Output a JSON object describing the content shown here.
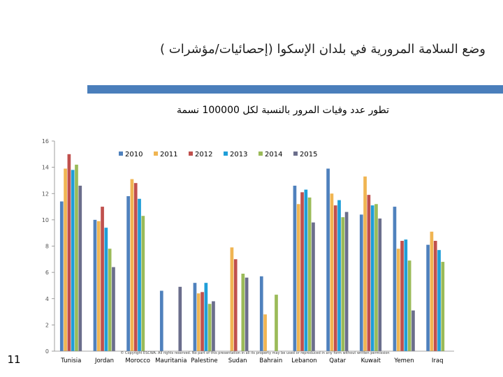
{
  "slide": {
    "title": "وضع السلامة المرورية في بلدان الإسكوا (إحصائيات/مؤشرات )",
    "page_number": "11",
    "copyright": "© Copyright ESCWA. All rights reserved. No part of this presentation in all its property may be used or reproduced in any form without written permission",
    "accent_color": "#4a7ebb"
  },
  "chart_data": {
    "type": "bar",
    "title": "تطور عدد وفيات المرور بالنسبة لكل 100000 نسمة",
    "xlabel": "",
    "ylabel": "",
    "ylim": [
      0,
      16
    ],
    "yticks": [
      0,
      2,
      4,
      6,
      8,
      10,
      12,
      14,
      16
    ],
    "grid": false,
    "legend_position": "top",
    "categories": [
      "Tunisia",
      "Jordan",
      "Morocco",
      "Mauritania",
      "Palestine",
      "Sudan",
      "Bahrain",
      "Lebanon",
      "Qatar",
      "Kuwait",
      "Yemen",
      "Iraq"
    ],
    "series": [
      {
        "name": "2010",
        "color": "#4f81bd",
        "values": [
          11.4,
          10.0,
          11.8,
          4.6,
          5.2,
          null,
          5.7,
          12.6,
          13.9,
          10.4,
          11.0,
          8.1
        ]
      },
      {
        "name": "2011",
        "color": "#f0b552",
        "values": [
          13.9,
          9.9,
          13.1,
          null,
          4.4,
          7.9,
          2.8,
          11.2,
          12.0,
          13.3,
          7.8,
          9.1
        ]
      },
      {
        "name": "2012",
        "color": "#c0504d",
        "values": [
          15.0,
          11.0,
          12.8,
          null,
          4.5,
          7.0,
          null,
          12.1,
          11.1,
          11.9,
          8.4,
          8.4
        ]
      },
      {
        "name": "2013",
        "color": "#1f9ed8",
        "values": [
          13.8,
          9.4,
          11.6,
          null,
          5.2,
          null,
          null,
          12.3,
          11.5,
          11.1,
          8.5,
          7.7
        ]
      },
      {
        "name": "2014",
        "color": "#9bbb59",
        "values": [
          14.2,
          7.8,
          10.3,
          null,
          3.6,
          5.9,
          4.3,
          11.7,
          10.2,
          11.2,
          6.9,
          6.8
        ]
      },
      {
        "name": "2015",
        "color": "#6b6e8c",
        "values": [
          12.6,
          6.4,
          null,
          4.9,
          3.8,
          5.6,
          null,
          9.8,
          10.6,
          10.1,
          3.1,
          null
        ]
      }
    ]
  }
}
